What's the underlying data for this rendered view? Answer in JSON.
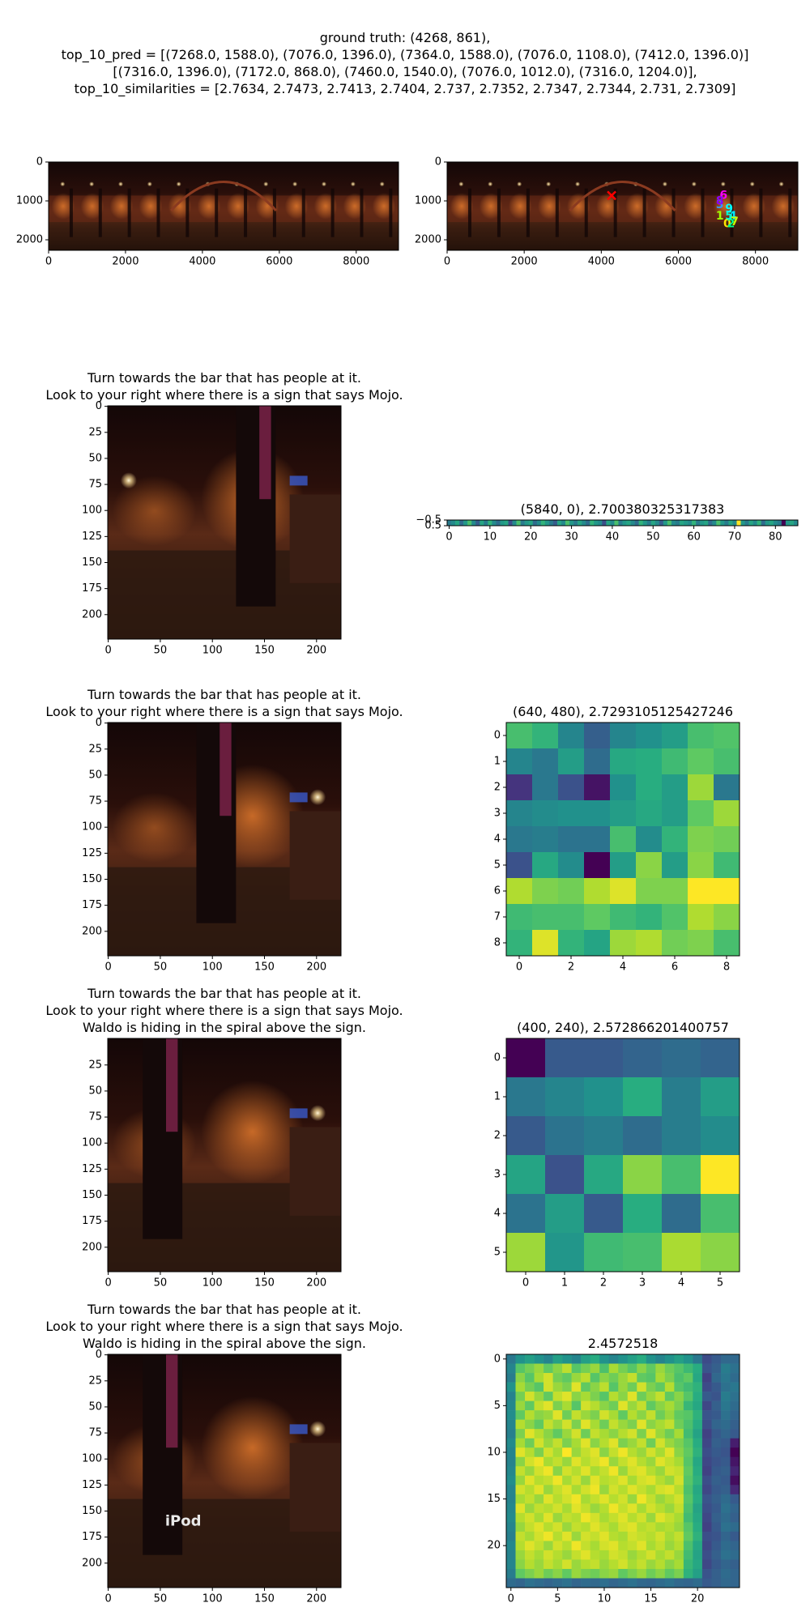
{
  "figure_title": [
    "ground truth: (4268, 861),",
    "top_10_pred = [(7268.0, 1588.0), (7076.0, 1396.0), (7364.0, 1588.0), (7076.0, 1108.0), (7412.0, 1396.0)]",
    "[(7316.0, 1396.0), (7172.0, 868.0), (7460.0, 1540.0), (7076.0, 1012.0), (7316.0, 1204.0)],",
    "top_10_similarities = [2.7634, 2.7473, 2.7413, 2.7404, 2.737, 2.7352, 2.7347, 2.7344, 2.731, 2.7309]"
  ],
  "chart_data": [
    {
      "type": "image",
      "xlim": [
        0,
        9100
      ],
      "ylim": [
        2270,
        0
      ],
      "xticks": [
        0,
        2000,
        4000,
        6000,
        8000
      ],
      "yticks": [
        0,
        1000,
        2000
      ]
    },
    {
      "type": "image",
      "xlim": [
        0,
        9100
      ],
      "ylim": [
        2270,
        0
      ],
      "xticks": [
        0,
        2000,
        4000,
        6000,
        8000
      ],
      "yticks": [
        0,
        1000,
        2000
      ],
      "ground_truth": {
        "x": 4268,
        "y": 861,
        "color": "#ff0000"
      },
      "markers": {
        "labels": [
          "0",
          "1",
          "2",
          "3",
          "4",
          "5",
          "6",
          "7",
          "8",
          "9"
        ],
        "x": [
          7268,
          7076,
          7364,
          7076,
          7412,
          7316,
          7172,
          7460,
          7076,
          7316
        ],
        "y": [
          1588,
          1396,
          1588,
          1108,
          1396,
          1396,
          868,
          1540,
          1012,
          1204
        ],
        "colors": [
          "#ffe600",
          "#9dff00",
          "#00ff8c",
          "#3399ff",
          "#00e5ff",
          "#00ffd0",
          "#ff00ff",
          "#c8ff00",
          "#8c00ff",
          "#00ffff"
        ]
      }
    },
    {
      "type": "image",
      "title": [
        "Turn towards the bar that has people at it.",
        "Look to your right where there is a sign that says Mojo."
      ],
      "xlim": [
        -0.5,
        223.5
      ],
      "ylim": [
        223.5,
        -0.5
      ],
      "xticks": [
        0,
        50,
        100,
        150,
        200
      ],
      "yticks": [
        0,
        25,
        50,
        75,
        100,
        125,
        150,
        175,
        200
      ]
    },
    {
      "type": "heatmap",
      "title": "(5840, 0), 2.700380325317383",
      "colormap": "viridis",
      "xlim": [
        -0.5,
        85.5
      ],
      "ylim": [
        0.5,
        -0.5
      ],
      "xticks": [
        0,
        10,
        20,
        30,
        40,
        50,
        60,
        70,
        80
      ],
      "yticks": [
        {
          "value": -0.5,
          "label": "−0.5"
        },
        0.5
      ],
      "values": [
        [
          0.45,
          0.5,
          0.6,
          0.4,
          0.55,
          0.7,
          0.5,
          0.35,
          0.6,
          0.45,
          0.65,
          0.5,
          0.4,
          0.55,
          0.6,
          0.3,
          0.5,
          0.7,
          0.45,
          0.55,
          0.6,
          0.4,
          0.5,
          0.65,
          0.55,
          0.45,
          0.35,
          0.6,
          0.5,
          0.7,
          0.55,
          0.45,
          0.6,
          0.5,
          0.4,
          0.65,
          0.55,
          0.5,
          0.3,
          0.6,
          0.5,
          0.7,
          0.45,
          0.55,
          0.6,
          0.5,
          0.4,
          0.65,
          0.55,
          0.45,
          0.6,
          0.5,
          0.35,
          0.55,
          0.7,
          0.5,
          0.45,
          0.6,
          0.55,
          0.5,
          0.65,
          0.45,
          0.55,
          0.6,
          0.4,
          0.5,
          0.7,
          0.55,
          0.45,
          0.6,
          0.5,
          0.95,
          0.55,
          0.45,
          0.6,
          0.5,
          0.65,
          0.4,
          0.55,
          0.6,
          0.5,
          0.45,
          0.1,
          0.55,
          0.6,
          0.5
        ]
      ]
    },
    {
      "type": "image",
      "title": [
        "Turn towards the bar that has people at it.",
        "Look to your right where there is a sign that says Mojo."
      ],
      "xlim": [
        -0.5,
        223.5
      ],
      "ylim": [
        223.5,
        -0.5
      ],
      "xticks": [
        0,
        50,
        100,
        150,
        200
      ],
      "yticks": [
        0,
        25,
        50,
        75,
        100,
        125,
        150,
        175,
        200
      ]
    },
    {
      "type": "heatmap",
      "title": "(640, 480), 2.7293105125427246",
      "colormap": "viridis",
      "xlim": [
        -0.5,
        8.5
      ],
      "ylim": [
        8.5,
        -0.5
      ],
      "xticks": [
        0,
        2,
        4,
        6,
        8
      ],
      "yticks": [
        0,
        1,
        2,
        3,
        4,
        5,
        6,
        7,
        8
      ],
      "values": [
        [
          0.7,
          0.65,
          0.45,
          0.3,
          0.45,
          0.5,
          0.55,
          0.7,
          0.72
        ],
        [
          0.45,
          0.4,
          0.55,
          0.35,
          0.6,
          0.62,
          0.68,
          0.75,
          0.7
        ],
        [
          0.15,
          0.4,
          0.25,
          0.05,
          0.5,
          0.62,
          0.55,
          0.85,
          0.4
        ],
        [
          0.45,
          0.48,
          0.5,
          0.5,
          0.55,
          0.6,
          0.55,
          0.75,
          0.85
        ],
        [
          0.4,
          0.42,
          0.38,
          0.38,
          0.7,
          0.48,
          0.65,
          0.8,
          0.78
        ],
        [
          0.25,
          0.6,
          0.48,
          0.0,
          0.55,
          0.82,
          0.55,
          0.82,
          0.68
        ],
        [
          0.88,
          0.8,
          0.78,
          0.88,
          0.95,
          0.8,
          0.8,
          1.0,
          1.0
        ],
        [
          0.68,
          0.7,
          0.7,
          0.75,
          0.68,
          0.65,
          0.72,
          0.88,
          0.82
        ],
        [
          0.65,
          0.95,
          0.65,
          0.58,
          0.85,
          0.88,
          0.78,
          0.8,
          0.7
        ]
      ]
    },
    {
      "type": "image",
      "title": [
        "Turn towards the bar that has people at it.",
        "Look to your right where there is a sign that says Mojo.",
        "Waldo is hiding in the spiral above the sign."
      ],
      "xlim": [
        -0.5,
        223.5
      ],
      "ylim": [
        223.5,
        -0.5
      ],
      "xticks": [
        0,
        50,
        100,
        150,
        200
      ],
      "yticks": [
        25,
        50,
        75,
        100,
        125,
        150,
        175,
        200
      ]
    },
    {
      "type": "heatmap",
      "title": "(400, 240), 2.572866201400757",
      "colormap": "viridis",
      "xlim": [
        -0.5,
        5.5
      ],
      "ylim": [
        5.5,
        -0.5
      ],
      "xticks": [
        0,
        1,
        2,
        3,
        4,
        5
      ],
      "yticks": [
        0,
        1,
        2,
        3,
        4,
        5
      ],
      "values": [
        [
          0.0,
          0.28,
          0.28,
          0.32,
          0.35,
          0.32
        ],
        [
          0.4,
          0.45,
          0.5,
          0.62,
          0.42,
          0.55
        ],
        [
          0.28,
          0.38,
          0.42,
          0.35,
          0.42,
          0.48
        ],
        [
          0.58,
          0.25,
          0.6,
          0.82,
          0.7,
          1.0
        ],
        [
          0.38,
          0.55,
          0.28,
          0.62,
          0.35,
          0.7
        ],
        [
          0.85,
          0.52,
          0.68,
          0.7,
          0.87,
          0.82
        ]
      ]
    },
    {
      "type": "image",
      "title": [
        "Turn towards the bar that has people at it.",
        "Look to your right where there is a sign that says Mojo.",
        "Waldo is hiding in the spiral above the sign."
      ],
      "overlay_text": "iPod",
      "xlim": [
        -0.5,
        223.5
      ],
      "ylim": [
        223.5,
        -0.5
      ],
      "xticks": [
        0,
        50,
        100,
        150,
        200
      ],
      "yticks": [
        0,
        25,
        50,
        75,
        100,
        125,
        150,
        175,
        200
      ]
    },
    {
      "type": "heatmap",
      "title": "2.4572518",
      "colormap": "viridis",
      "xlim": [
        -0.5,
        24.5
      ],
      "ylim": [
        24.5,
        -0.5
      ],
      "xticks": [
        0,
        5,
        10,
        15,
        20
      ],
      "yticks": [
        0,
        5,
        10,
        15,
        20
      ],
      "values": [
        [
          0.4,
          0.5,
          0.55,
          0.5,
          0.45,
          0.55,
          0.5,
          0.45,
          0.55,
          0.6,
          0.5,
          0.45,
          0.5,
          0.55,
          0.6,
          0.5,
          0.45,
          0.5,
          0.55,
          0.5,
          0.4,
          0.25,
          0.3,
          0.35,
          0.35
        ],
        [
          0.45,
          0.7,
          0.75,
          0.8,
          0.72,
          0.78,
          0.85,
          0.7,
          0.75,
          0.8,
          0.68,
          0.82,
          0.75,
          0.7,
          0.78,
          0.72,
          0.8,
          0.74,
          0.7,
          0.65,
          0.6,
          0.28,
          0.32,
          0.42,
          0.38
        ],
        [
          0.42,
          0.78,
          0.7,
          0.82,
          0.88,
          0.75,
          0.72,
          0.8,
          0.85,
          0.7,
          0.78,
          0.74,
          0.8,
          0.86,
          0.72,
          0.7,
          0.82,
          0.76,
          0.68,
          0.72,
          0.58,
          0.22,
          0.35,
          0.4,
          0.36
        ],
        [
          0.5,
          0.82,
          0.75,
          0.7,
          0.88,
          0.8,
          0.76,
          0.9,
          0.72,
          0.78,
          0.85,
          0.7,
          0.8,
          0.74,
          0.88,
          0.76,
          0.72,
          0.84,
          0.7,
          0.66,
          0.62,
          0.25,
          0.3,
          0.38,
          0.4
        ],
        [
          0.44,
          0.75,
          0.88,
          0.8,
          0.72,
          0.86,
          0.9,
          0.78,
          0.82,
          0.76,
          0.7,
          0.84,
          0.78,
          0.9,
          0.74,
          0.8,
          0.86,
          0.72,
          0.78,
          0.7,
          0.6,
          0.3,
          0.28,
          0.42,
          0.38
        ],
        [
          0.46,
          0.8,
          0.72,
          0.86,
          0.9,
          0.76,
          0.82,
          0.7,
          0.88,
          0.84,
          0.78,
          0.74,
          0.9,
          0.8,
          0.86,
          0.72,
          0.78,
          0.82,
          0.76,
          0.64,
          0.58,
          0.24,
          0.32,
          0.4,
          0.36
        ],
        [
          0.48,
          0.72,
          0.84,
          0.78,
          0.8,
          0.9,
          0.74,
          0.86,
          0.8,
          0.76,
          0.88,
          0.82,
          0.72,
          0.84,
          0.78,
          0.86,
          0.74,
          0.8,
          0.72,
          0.7,
          0.62,
          0.28,
          0.3,
          0.38,
          0.34
        ],
        [
          0.45,
          0.84,
          0.78,
          0.72,
          0.86,
          0.8,
          0.88,
          0.76,
          0.9,
          0.82,
          0.74,
          0.86,
          0.8,
          0.76,
          0.9,
          0.78,
          0.82,
          0.86,
          0.74,
          0.68,
          0.6,
          0.26,
          0.34,
          0.36,
          0.32
        ],
        [
          0.43,
          0.76,
          0.9,
          0.84,
          0.78,
          0.72,
          0.8,
          0.88,
          0.74,
          0.86,
          0.82,
          0.78,
          0.84,
          0.88,
          0.76,
          0.9,
          0.8,
          0.74,
          0.82,
          0.66,
          0.56,
          0.22,
          0.3,
          0.34,
          0.3
        ],
        [
          0.47,
          0.82,
          0.74,
          0.88,
          0.8,
          0.86,
          0.76,
          0.82,
          0.9,
          0.78,
          0.84,
          0.9,
          0.76,
          0.8,
          0.86,
          0.74,
          0.88,
          0.8,
          0.76,
          0.7,
          0.6,
          0.24,
          0.32,
          0.3,
          0.12
        ],
        [
          0.45,
          0.9,
          0.84,
          0.76,
          0.88,
          0.82,
          0.94,
          0.8,
          0.86,
          0.9,
          0.78,
          0.86,
          0.92,
          0.84,
          0.8,
          0.88,
          0.82,
          0.9,
          0.78,
          0.72,
          0.62,
          0.26,
          0.3,
          0.28,
          0.05
        ],
        [
          0.44,
          0.78,
          0.88,
          0.92,
          0.82,
          0.86,
          0.8,
          0.9,
          0.84,
          0.88,
          0.92,
          0.8,
          0.86,
          0.9,
          0.84,
          0.8,
          0.9,
          0.86,
          0.82,
          0.7,
          0.58,
          0.24,
          0.28,
          0.3,
          0.1
        ],
        [
          0.46,
          0.86,
          0.8,
          0.88,
          0.92,
          0.78,
          0.88,
          0.84,
          0.9,
          0.82,
          0.86,
          0.92,
          0.8,
          0.88,
          0.9,
          0.84,
          0.8,
          0.88,
          0.86,
          0.72,
          0.6,
          0.22,
          0.3,
          0.32,
          0.14
        ],
        [
          0.48,
          0.8,
          0.9,
          0.84,
          0.86,
          0.92,
          0.82,
          0.88,
          0.8,
          0.9,
          0.84,
          0.86,
          0.9,
          0.82,
          0.88,
          0.9,
          0.84,
          0.8,
          0.88,
          0.7,
          0.62,
          0.26,
          0.32,
          0.3,
          0.08
        ],
        [
          0.45,
          0.88,
          0.84,
          0.9,
          0.8,
          0.86,
          0.9,
          0.82,
          0.88,
          0.92,
          0.8,
          0.88,
          0.84,
          0.9,
          0.86,
          0.82,
          0.88,
          0.9,
          0.84,
          0.68,
          0.58,
          0.24,
          0.3,
          0.32,
          0.15
        ],
        [
          0.44,
          0.82,
          0.86,
          0.8,
          0.9,
          0.84,
          0.88,
          0.92,
          0.82,
          0.86,
          0.9,
          0.84,
          0.88,
          0.8,
          0.92,
          0.86,
          0.8,
          0.84,
          0.88,
          0.7,
          0.6,
          0.28,
          0.32,
          0.36,
          0.3
        ],
        [
          0.46,
          0.9,
          0.8,
          0.86,
          0.84,
          0.88,
          0.82,
          0.9,
          0.86,
          0.8,
          0.84,
          0.92,
          0.86,
          0.9,
          0.82,
          0.88,
          0.84,
          0.8,
          0.86,
          0.68,
          0.56,
          0.26,
          0.3,
          0.38,
          0.34
        ],
        [
          0.47,
          0.84,
          0.88,
          0.82,
          0.9,
          0.8,
          0.86,
          0.84,
          0.92,
          0.88,
          0.82,
          0.86,
          0.9,
          0.84,
          0.88,
          0.8,
          0.9,
          0.86,
          0.82,
          0.66,
          0.58,
          0.24,
          0.32,
          0.36,
          0.32
        ],
        [
          0.45,
          0.8,
          0.86,
          0.9,
          0.84,
          0.88,
          0.8,
          0.86,
          0.84,
          0.9,
          0.86,
          0.82,
          0.88,
          0.9,
          0.84,
          0.86,
          0.82,
          0.84,
          0.8,
          0.7,
          0.6,
          0.22,
          0.3,
          0.38,
          0.36
        ],
        [
          0.43,
          0.86,
          0.82,
          0.88,
          0.92,
          0.84,
          0.9,
          0.8,
          0.88,
          0.86,
          0.9,
          0.84,
          0.82,
          0.88,
          0.86,
          0.84,
          0.88,
          0.82,
          0.86,
          0.72,
          0.62,
          0.26,
          0.28,
          0.34,
          0.3
        ],
        [
          0.46,
          0.84,
          0.9,
          0.86,
          0.8,
          0.88,
          0.84,
          0.92,
          0.86,
          0.82,
          0.88,
          0.9,
          0.84,
          0.86,
          0.9,
          0.82,
          0.86,
          0.8,
          0.84,
          0.68,
          0.58,
          0.24,
          0.3,
          0.36,
          0.34
        ],
        [
          0.44,
          0.8,
          0.86,
          0.82,
          0.88,
          0.84,
          0.8,
          0.86,
          0.9,
          0.84,
          0.82,
          0.88,
          0.86,
          0.8,
          0.84,
          0.88,
          0.82,
          0.86,
          0.8,
          0.66,
          0.56,
          0.26,
          0.32,
          0.38,
          0.36
        ],
        [
          0.45,
          0.78,
          0.84,
          0.8,
          0.86,
          0.82,
          0.88,
          0.8,
          0.84,
          0.86,
          0.8,
          0.84,
          0.88,
          0.82,
          0.86,
          0.8,
          0.84,
          0.78,
          0.82,
          0.64,
          0.58,
          0.24,
          0.3,
          0.34,
          0.32
        ],
        [
          0.42,
          0.72,
          0.76,
          0.8,
          0.74,
          0.78,
          0.72,
          0.8,
          0.76,
          0.74,
          0.78,
          0.8,
          0.72,
          0.76,
          0.8,
          0.74,
          0.78,
          0.72,
          0.76,
          0.62,
          0.55,
          0.28,
          0.32,
          0.36,
          0.34
        ],
        [
          0.36,
          0.34,
          0.38,
          0.36,
          0.34,
          0.36,
          0.38,
          0.34,
          0.36,
          0.35,
          0.37,
          0.34,
          0.36,
          0.38,
          0.35,
          0.34,
          0.36,
          0.38,
          0.35,
          0.34,
          0.36,
          0.3,
          0.32,
          0.35,
          0.34
        ]
      ]
    }
  ]
}
